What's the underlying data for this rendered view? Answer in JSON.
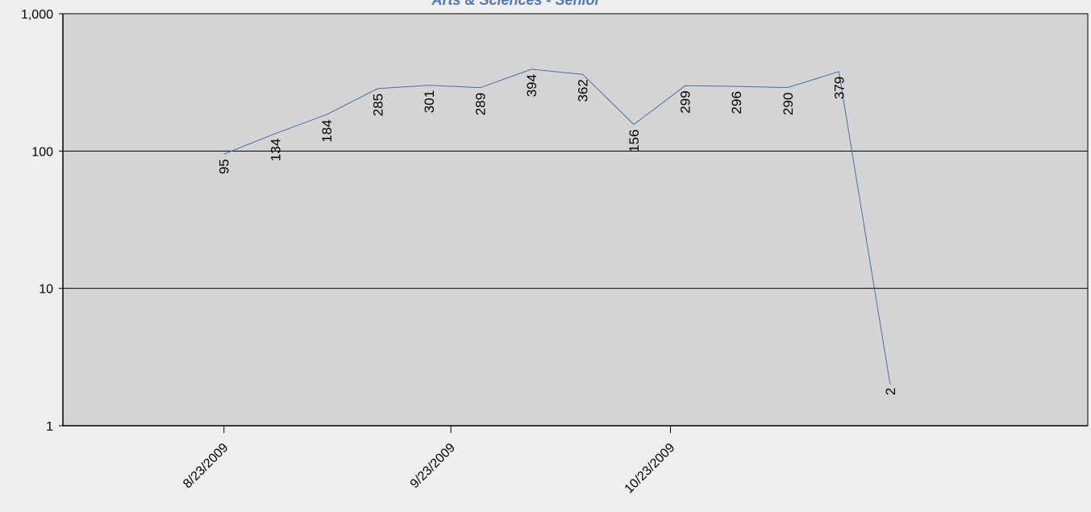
{
  "chart_data": {
    "type": "line",
    "title": "Arts & Sciences - Senior",
    "xlabel": "",
    "ylabel": "",
    "y_scale": "log",
    "ylim": [
      1,
      1000
    ],
    "y_ticks": [
      {
        "value": 1,
        "label": "1"
      },
      {
        "value": 10,
        "label": "10"
      },
      {
        "value": 100,
        "label": "100"
      },
      {
        "value": 1000,
        "label": "1,000"
      }
    ],
    "xlim": [
      "2009-08-01",
      "2009-12-19"
    ],
    "x_ticks": [
      {
        "date": "2009-08-23",
        "label": "8/23/2009"
      },
      {
        "date": "2009-09-23",
        "label": "9/23/2009"
      },
      {
        "date": "2009-10-23",
        "label": "10/23/2009"
      }
    ],
    "grid": true,
    "legend": "none",
    "series": [
      {
        "points": [
          {
            "x": "2009-08-23",
            "y": 95
          },
          {
            "x": "2009-08-30",
            "y": 134
          },
          {
            "x": "2009-09-06",
            "y": 184
          },
          {
            "x": "2009-09-13",
            "y": 285
          },
          {
            "x": "2009-09-20",
            "y": 301
          },
          {
            "x": "2009-09-27",
            "y": 289
          },
          {
            "x": "2009-10-04",
            "y": 394
          },
          {
            "x": "2009-10-11",
            "y": 362
          },
          {
            "x": "2009-10-18",
            "y": 156
          },
          {
            "x": "2009-10-25",
            "y": 299
          },
          {
            "x": "2009-11-01",
            "y": 296
          },
          {
            "x": "2009-11-08",
            "y": 290
          },
          {
            "x": "2009-11-15",
            "y": 379
          },
          {
            "x": "2009-11-22",
            "y": 2
          }
        ]
      }
    ],
    "colors": {
      "background": "#efefef",
      "plot_area": "#d4d4d4",
      "line": "#4a6fa5",
      "title": "#4f79b5",
      "grid": "#000000"
    }
  }
}
